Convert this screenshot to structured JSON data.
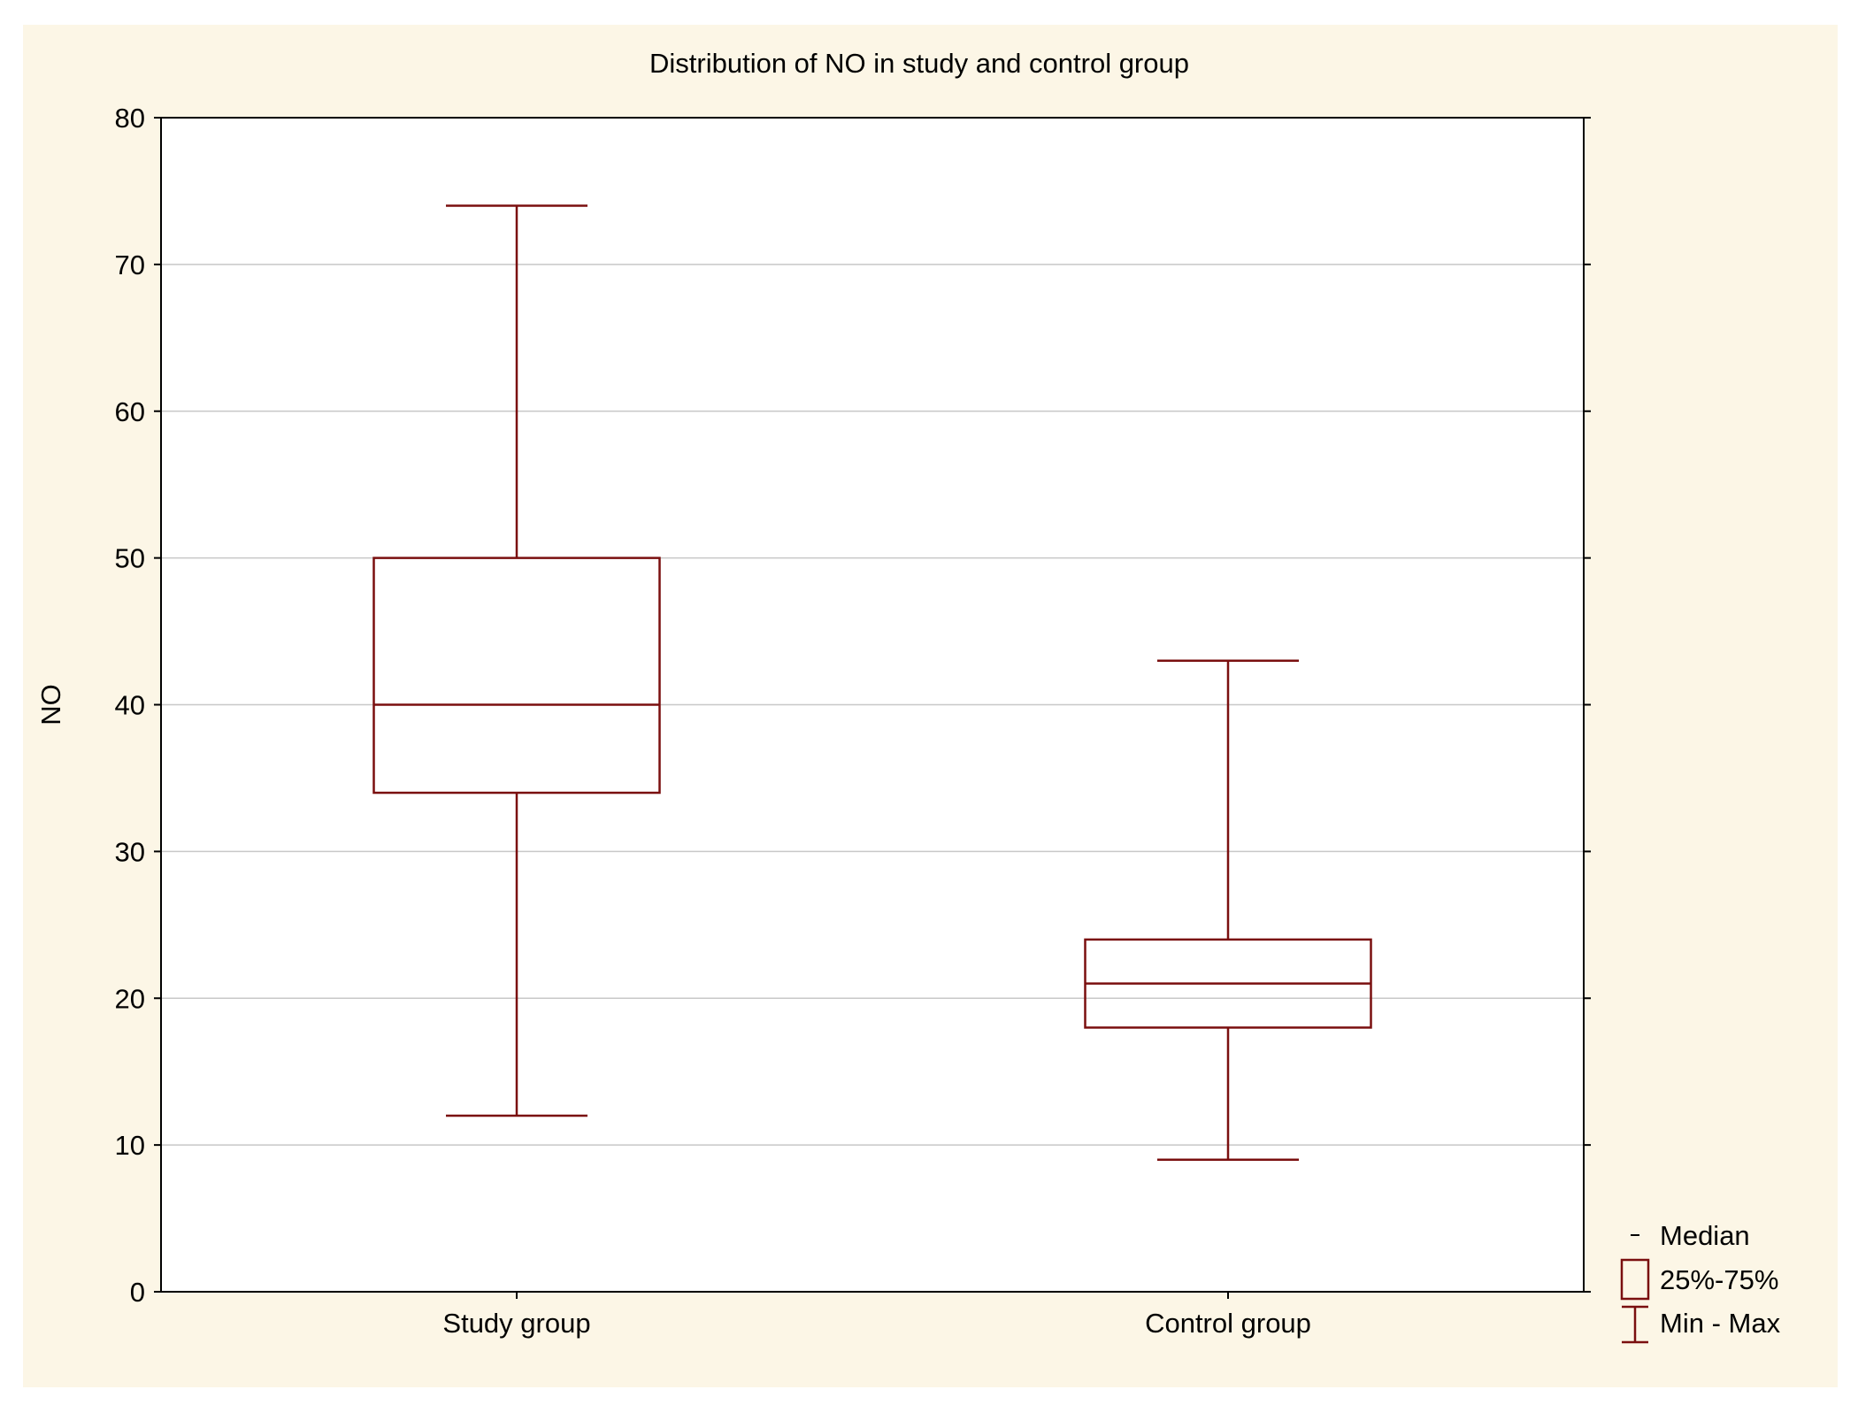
{
  "colors": {
    "background": "#fcf6e6",
    "plot_area": "#ffffff",
    "series": "#7a0f0f",
    "grid": "#c8c8c8",
    "axis": "#000000"
  },
  "chart_data": {
    "type": "boxplot",
    "title": "Distribution of NO in study and control group",
    "xlabel": "",
    "ylabel": "NO",
    "ylim": [
      0,
      80
    ],
    "yticks": [
      0,
      10,
      20,
      30,
      40,
      50,
      60,
      70,
      80
    ],
    "grid": true,
    "categories": [
      "Study group",
      "Control group"
    ],
    "boxes": [
      {
        "category": "Study group",
        "min": 12,
        "q1": 34,
        "median": 40,
        "q3": 50,
        "max": 74
      },
      {
        "category": "Control group",
        "min": 9,
        "q1": 18,
        "median": 21,
        "q3": 24,
        "max": 43
      }
    ],
    "legend": {
      "position": "bottom-right",
      "items": [
        {
          "symbol": "median",
          "label": "Median"
        },
        {
          "symbol": "box",
          "label": "25%-75%"
        },
        {
          "symbol": "whisker",
          "label": "Min - Max"
        }
      ]
    }
  }
}
